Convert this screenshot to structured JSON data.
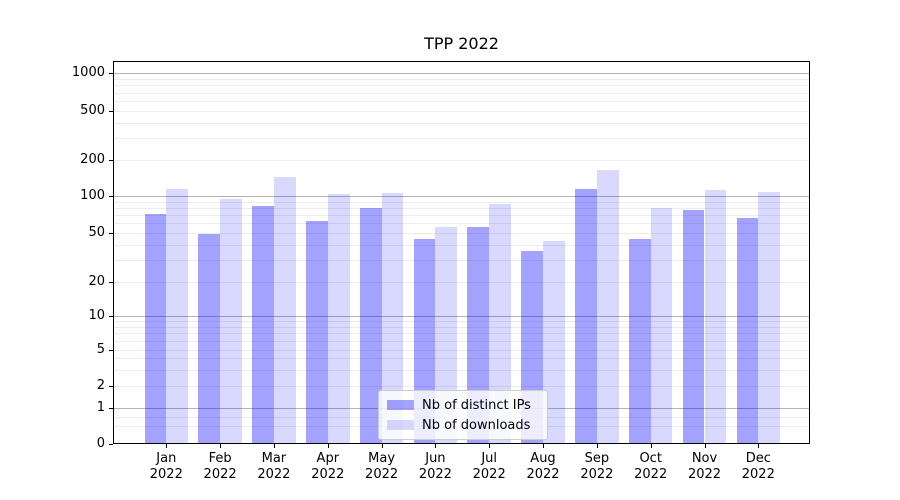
{
  "title": "TPP 2022",
  "chart_data": {
    "type": "bar",
    "title": "TPP 2022",
    "categories": [
      {
        "month": "Jan",
        "year": "2022"
      },
      {
        "month": "Feb",
        "year": "2022"
      },
      {
        "month": "Mar",
        "year": "2022"
      },
      {
        "month": "Apr",
        "year": "2022"
      },
      {
        "month": "May",
        "year": "2022"
      },
      {
        "month": "Jun",
        "year": "2022"
      },
      {
        "month": "Jul",
        "year": "2022"
      },
      {
        "month": "Aug",
        "year": "2022"
      },
      {
        "month": "Sep",
        "year": "2022"
      },
      {
        "month": "Oct",
        "year": "2022"
      },
      {
        "month": "Nov",
        "year": "2022"
      },
      {
        "month": "Dec",
        "year": "2022"
      }
    ],
    "series": [
      {
        "name": "Nb of distinct IPs",
        "color": "rgba(0,0,255,0.36)",
        "values": [
          70,
          48,
          81,
          61,
          79,
          44,
          55,
          35,
          113,
          44,
          75,
          65
        ]
      },
      {
        "name": "Nb of downloads",
        "color": "rgba(0,0,255,0.15)",
        "values": [
          113,
          93,
          140,
          102,
          104,
          55,
          84,
          42,
          160,
          78,
          110,
          105
        ]
      }
    ],
    "xlabel": "",
    "ylabel": "",
    "yscale": "symlog",
    "ylim": [
      0,
      1000
    ],
    "ytick_values": [
      0,
      1,
      2,
      5,
      10,
      20,
      50,
      100,
      200,
      500,
      1000
    ],
    "ytick_labels": [
      "0",
      "1",
      "2",
      "5",
      "10",
      "20",
      "50",
      "100",
      "200",
      "500",
      "1000"
    ],
    "grid": true,
    "legend_position": "lower center"
  },
  "colors": {
    "bar_distinct_ips": "#a3a3f8",
    "bar_downloads": "#d9d9fb",
    "major_grid": "#b4b4b4",
    "minor_grid": "#ececec",
    "spine": "#000000",
    "background": "#ffffff"
  }
}
